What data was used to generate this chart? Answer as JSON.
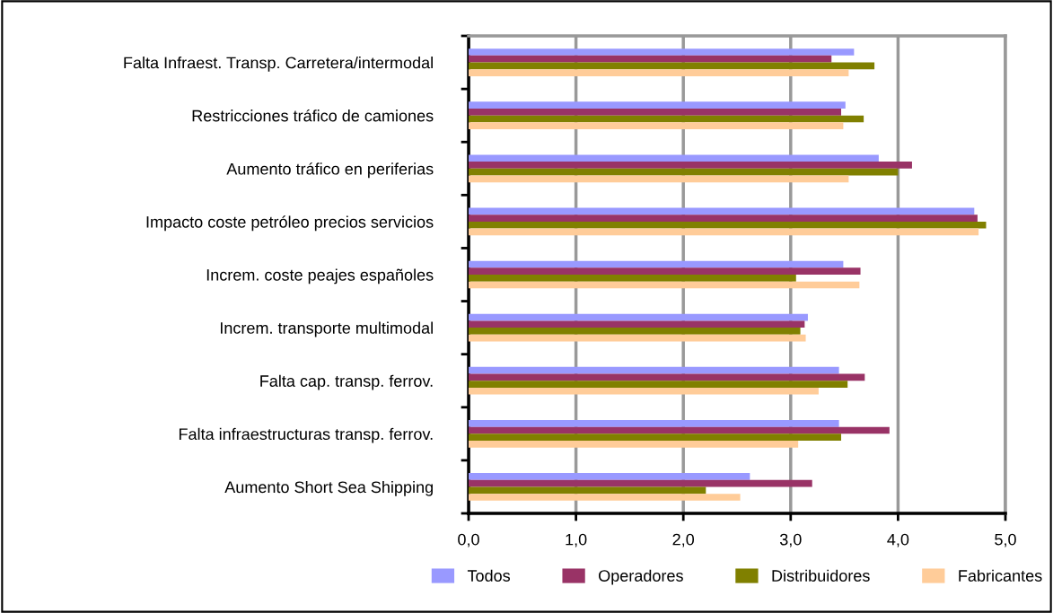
{
  "chart_data": {
    "type": "bar",
    "orientation": "horizontal",
    "categories": [
      "Falta Infraest. Transp. Carretera/intermodal",
      "Restricciones tráfico de camiones",
      "Aumento tráfico en periferias",
      "Impacto coste petróleo precios servicios",
      "Increm. coste peajes españoles",
      "Increm. transporte multimodal",
      "Falta cap. transp. ferrov.",
      "Falta infraestructuras transp. ferrov.",
      "Aumento Short Sea Shipping"
    ],
    "series": [
      {
        "name": "Todos",
        "color": "#9999ff",
        "values": [
          3.59,
          3.51,
          3.82,
          4.71,
          3.49,
          3.16,
          3.45,
          3.45,
          2.62
        ]
      },
      {
        "name": "Operadores",
        "color": "#993366",
        "values": [
          3.38,
          3.47,
          4.13,
          4.74,
          3.65,
          3.13,
          3.69,
          3.92,
          3.2
        ]
      },
      {
        "name": "Distribuidores",
        "color": "#808000",
        "values": [
          3.78,
          3.68,
          4.0,
          4.82,
          3.05,
          3.09,
          3.53,
          3.47,
          2.21
        ]
      },
      {
        "name": "Fabricantes",
        "color": "#ffcc99",
        "values": [
          3.54,
          3.49,
          3.54,
          4.75,
          3.64,
          3.14,
          3.26,
          3.07,
          2.53
        ]
      }
    ],
    "xlim": [
      0,
      5
    ],
    "xticks": [
      {
        "value": 0,
        "label": "0,0"
      },
      {
        "value": 1,
        "label": "1,0"
      },
      {
        "value": 2,
        "label": "2,0"
      },
      {
        "value": 3,
        "label": "3,0"
      },
      {
        "value": 4,
        "label": "4,0"
      },
      {
        "value": 5,
        "label": "5,0"
      }
    ],
    "grid": "x",
    "legend": "bottom"
  }
}
